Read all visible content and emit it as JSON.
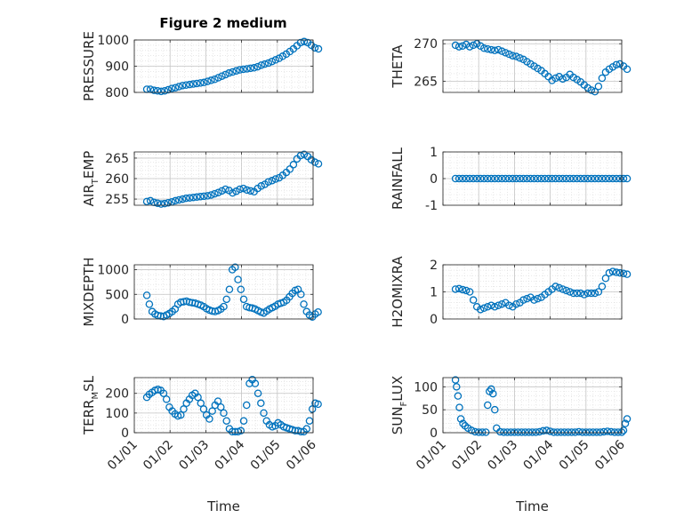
{
  "figure": {
    "title": "Figure 2 medium",
    "marker_color": "#0072bd",
    "grid": true
  },
  "chart_data": [
    {
      "type": "scatter",
      "ylabel": "PRESSURE",
      "xlabel": "",
      "ylim": [
        800,
        1000
      ],
      "yticks": [
        800,
        900,
        1000
      ],
      "xlim": [
        0,
        5
      ],
      "xticks": [
        0,
        1,
        2,
        3,
        4,
        5
      ],
      "xticklabels": [],
      "series": [
        {
          "x": [
            0.35,
            0.45,
            0.55,
            0.65,
            0.75,
            0.85,
            0.95,
            1.05,
            1.15,
            1.25,
            1.35,
            1.45,
            1.55,
            1.65,
            1.75,
            1.85,
            1.95,
            2.05,
            2.15,
            2.25,
            2.35,
            2.45,
            2.55,
            2.65,
            2.75,
            2.85,
            2.95,
            3.05,
            3.15,
            3.25,
            3.35,
            3.45,
            3.55,
            3.65,
            3.75,
            3.85,
            3.95,
            4.05,
            4.15,
            4.25,
            4.35,
            4.45,
            4.55,
            4.65,
            4.75,
            4.85,
            4.95,
            5.05,
            5.15
          ],
          "y": [
            812,
            812,
            808,
            806,
            804,
            806,
            810,
            815,
            818,
            822,
            826,
            828,
            830,
            832,
            834,
            836,
            838,
            842,
            846,
            850,
            856,
            862,
            868,
            874,
            878,
            882,
            886,
            888,
            890,
            892,
            894,
            898,
            904,
            908,
            912,
            918,
            924,
            930,
            938,
            946,
            956,
            966,
            978,
            990,
            994,
            990,
            980,
            970,
            966
          ]
        }
      ]
    },
    {
      "type": "scatter",
      "ylabel": "THETA",
      "xlabel": "",
      "ylim": [
        263.5,
        270.5
      ],
      "yticks": [
        265,
        270
      ],
      "xlim": [
        0,
        5
      ],
      "xticks": [
        0,
        1,
        2,
        3,
        4,
        5
      ],
      "xticklabels": [],
      "series": [
        {
          "x": [
            0.35,
            0.45,
            0.55,
            0.65,
            0.75,
            0.85,
            0.95,
            1.05,
            1.15,
            1.25,
            1.35,
            1.45,
            1.55,
            1.65,
            1.75,
            1.85,
            1.95,
            2.05,
            2.15,
            2.25,
            2.35,
            2.45,
            2.55,
            2.65,
            2.75,
            2.85,
            2.95,
            3.05,
            3.15,
            3.25,
            3.35,
            3.45,
            3.55,
            3.65,
            3.75,
            3.85,
            3.95,
            4.05,
            4.15,
            4.25,
            4.35,
            4.45,
            4.55,
            4.65,
            4.75,
            4.85,
            4.95,
            5.05,
            5.15
          ],
          "y": [
            269.8,
            269.6,
            269.7,
            269.9,
            269.6,
            269.8,
            270.0,
            269.7,
            269.4,
            269.3,
            269.2,
            269.1,
            269.2,
            269.0,
            268.8,
            268.6,
            268.4,
            268.3,
            268.1,
            267.9,
            267.6,
            267.3,
            267.0,
            266.7,
            266.4,
            266.0,
            265.6,
            265.1,
            265.4,
            265.6,
            265.3,
            265.5,
            265.9,
            265.5,
            265.2,
            264.9,
            264.5,
            264.1,
            263.8,
            263.6,
            264.3,
            265.4,
            266.2,
            266.6,
            266.9,
            267.2,
            267.3,
            267.0,
            266.6
          ]
        }
      ]
    },
    {
      "type": "scatter",
      "ylabel": "AIR_T_EMP",
      "ylabel_parts": [
        "AIR",
        "T",
        "EMP"
      ],
      "xlabel": "",
      "ylim": [
        253.5,
        266.5
      ],
      "yticks": [
        255,
        260,
        265
      ],
      "xlim": [
        0,
        5
      ],
      "xticks": [
        0,
        1,
        2,
        3,
        4,
        5
      ],
      "xticklabels": [],
      "series": [
        {
          "x": [
            0.35,
            0.45,
            0.55,
            0.65,
            0.75,
            0.85,
            0.95,
            1.05,
            1.15,
            1.25,
            1.35,
            1.45,
            1.55,
            1.65,
            1.75,
            1.85,
            1.95,
            2.05,
            2.15,
            2.25,
            2.35,
            2.45,
            2.55,
            2.65,
            2.75,
            2.85,
            2.95,
            3.05,
            3.15,
            3.25,
            3.35,
            3.45,
            3.55,
            3.65,
            3.75,
            3.85,
            3.95,
            4.05,
            4.15,
            4.25,
            4.35,
            4.45,
            4.55,
            4.65,
            4.75,
            4.85,
            4.95,
            5.05,
            5.15
          ],
          "y": [
            254.4,
            254.6,
            254.2,
            254.0,
            253.8,
            253.9,
            254.1,
            254.3,
            254.6,
            254.8,
            255.0,
            255.2,
            255.3,
            255.4,
            255.5,
            255.6,
            255.7,
            255.8,
            256.0,
            256.3,
            256.6,
            257.0,
            257.4,
            257.1,
            256.5,
            256.9,
            257.4,
            257.6,
            257.2,
            257.0,
            256.8,
            257.6,
            258.2,
            258.6,
            259.2,
            259.5,
            259.9,
            260.2,
            260.8,
            261.5,
            262.3,
            263.4,
            264.8,
            265.6,
            265.9,
            265.4,
            264.6,
            264.0,
            263.6
          ]
        }
      ]
    },
    {
      "type": "scatter",
      "ylabel": "RAINFALL",
      "xlabel": "",
      "ylim": [
        -1,
        1
      ],
      "yticks": [
        -1,
        0,
        1
      ],
      "xlim": [
        0,
        5
      ],
      "xticks": [
        0,
        1,
        2,
        3,
        4,
        5
      ],
      "xticklabels": [],
      "series": [
        {
          "x": [
            0.35,
            0.45,
            0.55,
            0.65,
            0.75,
            0.85,
            0.95,
            1.05,
            1.15,
            1.25,
            1.35,
            1.45,
            1.55,
            1.65,
            1.75,
            1.85,
            1.95,
            2.05,
            2.15,
            2.25,
            2.35,
            2.45,
            2.55,
            2.65,
            2.75,
            2.85,
            2.95,
            3.05,
            3.15,
            3.25,
            3.35,
            3.45,
            3.55,
            3.65,
            3.75,
            3.85,
            3.95,
            4.05,
            4.15,
            4.25,
            4.35,
            4.45,
            4.55,
            4.65,
            4.75,
            4.85,
            4.95,
            5.05,
            5.15
          ],
          "y": [
            0,
            0,
            0,
            0,
            0,
            0,
            0,
            0,
            0,
            0,
            0,
            0,
            0,
            0,
            0,
            0,
            0,
            0,
            0,
            0,
            0,
            0,
            0,
            0,
            0,
            0,
            0,
            0,
            0,
            0,
            0,
            0,
            0,
            0,
            0,
            0,
            0,
            0,
            0,
            0,
            0,
            0,
            0,
            0,
            0,
            0,
            0,
            0,
            0
          ]
        }
      ]
    },
    {
      "type": "scatter",
      "ylabel": "MIXDEPTH",
      "xlabel": "",
      "ylim": [
        0,
        1100
      ],
      "yticks": [
        0,
        500,
        1000
      ],
      "xlim": [
        0,
        5
      ],
      "xticks": [
        0,
        1,
        2,
        3,
        4,
        5
      ],
      "xticklabels": [],
      "series": [
        {
          "x": [
            0.35,
            0.42,
            0.5,
            0.58,
            0.66,
            0.74,
            0.82,
            0.9,
            0.98,
            1.06,
            1.14,
            1.22,
            1.3,
            1.38,
            1.46,
            1.54,
            1.62,
            1.7,
            1.78,
            1.86,
            1.94,
            2.02,
            2.1,
            2.18,
            2.26,
            2.34,
            2.42,
            2.5,
            2.58,
            2.66,
            2.74,
            2.82,
            2.9,
            2.98,
            3.06,
            3.14,
            3.22,
            3.3,
            3.38,
            3.46,
            3.54,
            3.62,
            3.7,
            3.78,
            3.86,
            3.94,
            4.02,
            4.1,
            4.18,
            4.26,
            4.34,
            4.42,
            4.5,
            4.58,
            4.66,
            4.74,
            4.82,
            4.9,
            4.98,
            5.06,
            5.14
          ],
          "y": [
            480,
            300,
            150,
            100,
            70,
            60,
            50,
            80,
            110,
            150,
            200,
            300,
            340,
            350,
            360,
            340,
            330,
            320,
            300,
            280,
            250,
            210,
            180,
            160,
            150,
            170,
            200,
            250,
            400,
            600,
            1000,
            1050,
            800,
            600,
            400,
            250,
            230,
            220,
            200,
            170,
            140,
            120,
            160,
            200,
            230,
            260,
            300,
            320,
            340,
            380,
            450,
            520,
            580,
            600,
            500,
            300,
            150,
            80,
            40,
            100,
            140
          ]
        }
      ]
    },
    {
      "type": "scatter",
      "ylabel": "H2OMIXRA",
      "xlabel": "",
      "ylim": [
        0,
        2
      ],
      "yticks": [
        0,
        1,
        2
      ],
      "xlim": [
        0,
        5
      ],
      "xticks": [
        0,
        1,
        2,
        3,
        4,
        5
      ],
      "xticklabels": [],
      "series": [
        {
          "x": [
            0.35,
            0.45,
            0.55,
            0.65,
            0.75,
            0.85,
            0.95,
            1.05,
            1.15,
            1.25,
            1.35,
            1.45,
            1.55,
            1.65,
            1.75,
            1.85,
            1.95,
            2.05,
            2.15,
            2.25,
            2.35,
            2.45,
            2.55,
            2.65,
            2.75,
            2.85,
            2.95,
            3.05,
            3.15,
            3.25,
            3.35,
            3.45,
            3.55,
            3.65,
            3.75,
            3.85,
            3.95,
            4.05,
            4.15,
            4.25,
            4.35,
            4.45,
            4.55,
            4.65,
            4.75,
            4.85,
            4.95,
            5.05,
            5.15
          ],
          "y": [
            1.1,
            1.12,
            1.08,
            1.05,
            1.0,
            0.7,
            0.45,
            0.35,
            0.4,
            0.45,
            0.5,
            0.45,
            0.5,
            0.55,
            0.6,
            0.5,
            0.45,
            0.55,
            0.6,
            0.7,
            0.75,
            0.8,
            0.7,
            0.75,
            0.8,
            0.9,
            1.0,
            1.1,
            1.2,
            1.15,
            1.1,
            1.05,
            1.0,
            0.95,
            0.95,
            0.95,
            0.9,
            0.95,
            0.95,
            0.95,
            1.0,
            1.2,
            1.5,
            1.7,
            1.75,
            1.72,
            1.7,
            1.68,
            1.65
          ]
        }
      ]
    },
    {
      "type": "scatter",
      "ylabel": "TERR_M_SL",
      "ylabel_parts": [
        "TERR",
        "M",
        "SL"
      ],
      "xlabel": "Time",
      "ylim": [
        0,
        280
      ],
      "yticks": [
        0,
        100,
        200
      ],
      "xlim": [
        0,
        5
      ],
      "xticks": [
        0,
        1,
        2,
        3,
        4,
        5
      ],
      "xticklabels": [
        "01/01",
        "01/02",
        "01/03",
        "01/04",
        "01/05",
        "01/06"
      ],
      "series": [
        {
          "x": [
            0.35,
            0.42,
            0.5,
            0.58,
            0.66,
            0.74,
            0.82,
            0.9,
            0.98,
            1.06,
            1.14,
            1.22,
            1.3,
            1.38,
            1.46,
            1.54,
            1.62,
            1.7,
            1.78,
            1.86,
            1.94,
            2.02,
            2.1,
            2.18,
            2.26,
            2.34,
            2.42,
            2.5,
            2.58,
            2.66,
            2.74,
            2.82,
            2.9,
            2.98,
            3.06,
            3.14,
            3.22,
            3.3,
            3.38,
            3.46,
            3.54,
            3.62,
            3.7,
            3.78,
            3.86,
            3.94,
            4.02,
            4.1,
            4.18,
            4.26,
            4.34,
            4.42,
            4.5,
            4.58,
            4.66,
            4.74,
            4.82,
            4.9,
            4.98,
            5.06,
            5.14
          ],
          "y": [
            180,
            195,
            205,
            215,
            220,
            215,
            200,
            170,
            130,
            110,
            95,
            85,
            90,
            120,
            150,
            170,
            190,
            200,
            180,
            150,
            120,
            90,
            70,
            110,
            140,
            160,
            130,
            100,
            60,
            20,
            5,
            5,
            5,
            10,
            60,
            140,
            250,
            270,
            250,
            200,
            150,
            100,
            60,
            40,
            30,
            35,
            50,
            40,
            30,
            25,
            20,
            15,
            10,
            10,
            5,
            5,
            20,
            60,
            120,
            150,
            145
          ]
        }
      ]
    },
    {
      "type": "scatter",
      "ylabel": "SUN_F_LUX",
      "ylabel_parts": [
        "SUN",
        "F",
        "LUX"
      ],
      "xlabel": "Time",
      "ylim": [
        0,
        120
      ],
      "yticks": [
        0,
        50,
        100
      ],
      "xlim": [
        0,
        5
      ],
      "xticks": [
        0,
        1,
        2,
        3,
        4,
        5
      ],
      "xticklabels": [
        "01/01",
        "01/02",
        "01/03",
        "01/04",
        "01/05",
        "01/06"
      ],
      "series": [
        {
          "x": [
            0.35,
            0.38,
            0.42,
            0.46,
            0.5,
            0.56,
            0.62,
            0.7,
            0.8,
            0.9,
            1.0,
            1.1,
            1.2,
            1.25,
            1.3,
            1.35,
            1.4,
            1.45,
            1.5,
            1.6,
            1.7,
            1.8,
            1.9,
            2.0,
            2.1,
            2.2,
            2.3,
            2.4,
            2.5,
            2.6,
            2.7,
            2.8,
            2.9,
            3.0,
            3.1,
            3.2,
            3.3,
            3.4,
            3.5,
            3.6,
            3.7,
            3.8,
            3.9,
            4.0,
            4.1,
            4.2,
            4.3,
            4.4,
            4.5,
            4.6,
            4.7,
            4.8,
            4.9,
            5.0,
            5.05,
            5.1,
            5.15
          ],
          "y": [
            115,
            100,
            80,
            55,
            30,
            20,
            15,
            10,
            5,
            2,
            1,
            1,
            1,
            60,
            90,
            95,
            85,
            50,
            10,
            2,
            1,
            1,
            1,
            1,
            1,
            1,
            1,
            1,
            1,
            1,
            2,
            4,
            5,
            3,
            1,
            1,
            1,
            1,
            1,
            1,
            1,
            2,
            1,
            1,
            1,
            1,
            1,
            1,
            2,
            3,
            2,
            1,
            1,
            1,
            5,
            20,
            30
          ]
        }
      ]
    }
  ]
}
